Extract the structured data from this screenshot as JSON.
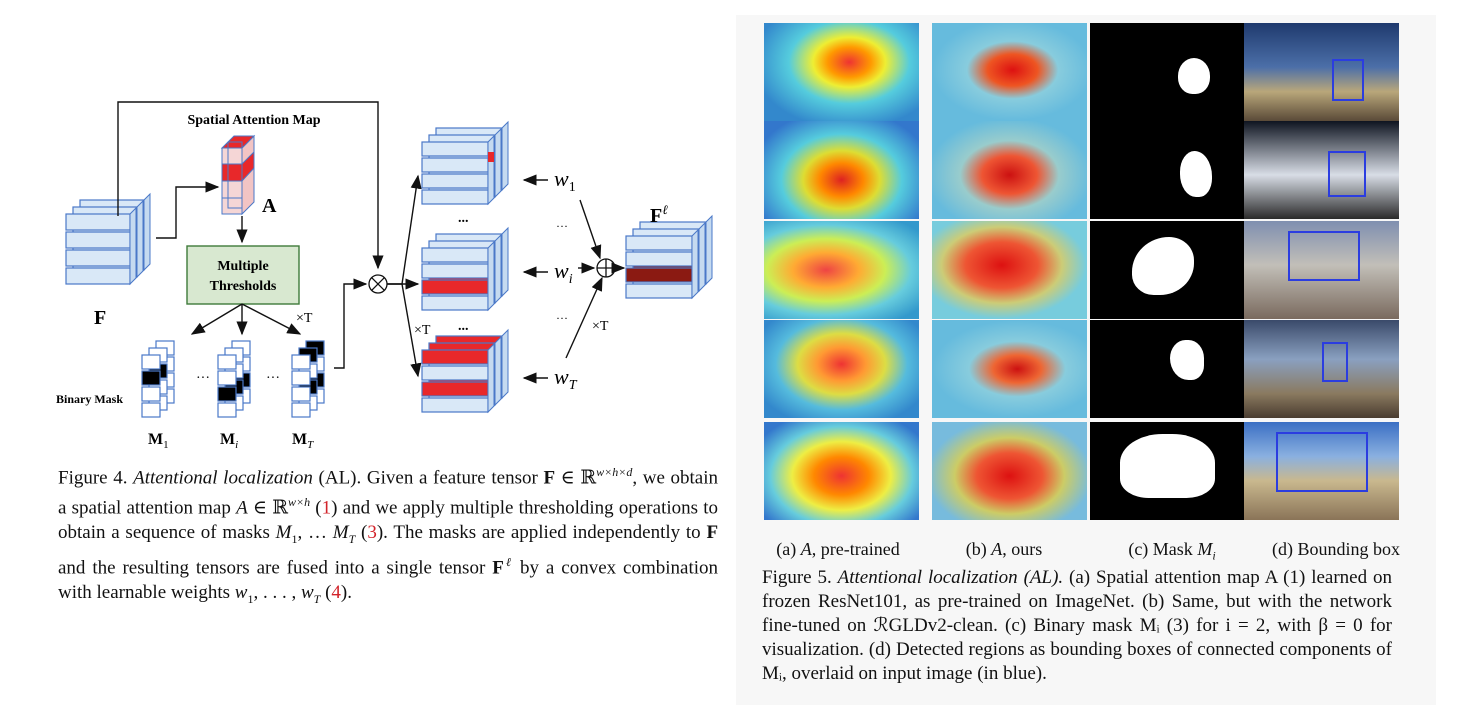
{
  "figure4": {
    "labels": {
      "spatial_attention_map": "Spatial Attention Map",
      "A": "A",
      "multiple": "Multiple",
      "thresholds": "Thresholds",
      "F": "F",
      "binary_mask": "Binary Mask",
      "M1": "M",
      "M1_sub": "1",
      "Mi": "M",
      "Mi_sub": "i",
      "MT": "M",
      "MT_sub": "T",
      "times_T": "×T",
      "Fl": "F",
      "Fl_sup": "ℓ",
      "w1": "w",
      "w1_sub": "1",
      "wi": "w",
      "wi_sub": "i",
      "wT": "w",
      "wT_sub": "T",
      "dots": "···",
      "vdots": "..."
    },
    "caption": {
      "label": "Figure 4.",
      "title": "Attentional localization",
      "abbr": " (AL). Given a feature tensor ",
      "body1": "we obtain a spatial attention map",
      "ref1": "1",
      "body2": "and we apply multiple thresholding operations to obtain a sequence of masks",
      "ref3": "3",
      "body3": "The masks are applied independently to",
      "body4": "and the resulting tensors are fused into a single tensor",
      "body5": "by a convex combination with learnable weights",
      "ref4": "4"
    }
  },
  "figure5": {
    "columns": [
      {
        "label": "(a) A, pre-trained"
      },
      {
        "label": "(b) A, ours"
      },
      {
        "label": "(c) Mask Mᵢ"
      },
      {
        "label": "(d) Bounding box"
      }
    ],
    "caption": {
      "label": "Figure 5.",
      "title": "Attentional localization (AL).",
      "body": "(a) Spatial attention map A (1) learned on frozen ResNet101, as pre-trained on ImageNet. (b) Same, but with the network fine-tuned on ℛGLDv2-clean. (c) Binary mask Mᵢ (3) for i = 2, with β = 0 for visualization. (d) Detected regions as bounding boxes of connected components of Mᵢ, overlaid on input image (in blue)."
    }
  },
  "colors": {
    "cube_face": "#d9e8f7",
    "cube_edge": "#4a78c8",
    "attention_red": "#e8282a",
    "dark_red": "#8b1a12",
    "mask_black": "#000000",
    "threshold_box": "#d8e8d0",
    "ref_red": "#d2232a",
    "bbox_blue": "#2b3de0"
  }
}
